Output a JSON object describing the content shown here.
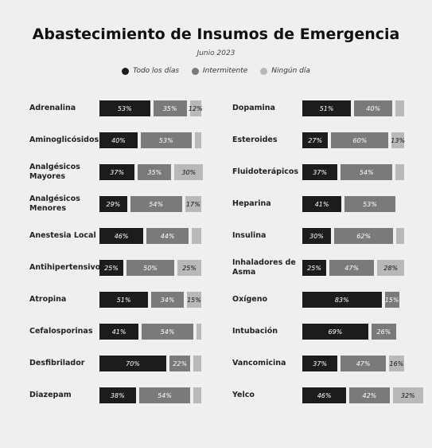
{
  "chart_data": {
    "type": "bar",
    "orientation": "horizontal",
    "stacked": true,
    "title": "Abastecimiento de Insumos de Emergencia",
    "subtitle": "Junio 2023",
    "categories": [
      "Adrenalina",
      "Aminoglicósidos",
      "Analgésicos Mayores",
      "Analgésicos Menores",
      "Anestesia Local",
      "Antihipertensivos",
      "Atropina",
      "Cefalosporinas",
      "Desfibrilador",
      "Diazepam",
      "Dopamina",
      "Esteroides",
      "Fluidoterápicos",
      "Heparina",
      "Insulina",
      "Inhaladores de Asma",
      "Oxígeno",
      "Intubación",
      "Vancomicina",
      "Yelco"
    ],
    "series": [
      {
        "name": "Todo los días",
        "color": "#1c1c1c",
        "values": [
          53,
          40,
          37,
          29,
          46,
          25,
          51,
          41,
          70,
          38,
          51,
          27,
          37,
          41,
          30,
          25,
          83,
          69,
          37,
          46
        ],
        "value_labels": [
          "53%",
          "40%",
          "37%",
          "29%",
          "46%",
          "25%",
          "51%",
          "41%",
          "70%",
          "38%",
          "51%",
          "27%",
          "37%",
          "41%",
          "30%",
          "25%",
          "83%",
          "69%",
          "37%",
          "46%"
        ]
      },
      {
        "name": "Intermitente",
        "color": "#7a7a7a",
        "values": [
          35,
          53,
          35,
          54,
          44,
          50,
          34,
          54,
          22,
          54,
          40,
          60,
          54,
          53,
          62,
          47,
          15,
          26,
          47,
          42
        ],
        "value_labels": [
          "35%",
          "53%",
          "35%",
          "54%",
          "44%",
          "50%",
          "34%",
          "54%",
          "22%",
          "54%",
          "40%",
          "60%",
          "54%",
          "53%",
          "62%",
          "47%",
          "15%",
          "26%",
          "47%",
          "42%"
        ]
      },
      {
        "name": "Ningún día",
        "color": "#b8b8b8",
        "values": [
          12,
          7,
          30,
          17,
          10,
          25,
          15,
          5,
          8,
          8,
          9,
          13,
          9,
          null,
          8,
          28,
          null,
          null,
          16,
          32
        ],
        "value_labels": [
          "12%",
          null,
          "30%",
          "17%",
          null,
          "25%",
          "15%",
          null,
          null,
          null,
          null,
          "13%",
          null,
          null,
          null,
          "28%",
          null,
          null,
          "16%",
          "32%"
        ]
      }
    ]
  }
}
